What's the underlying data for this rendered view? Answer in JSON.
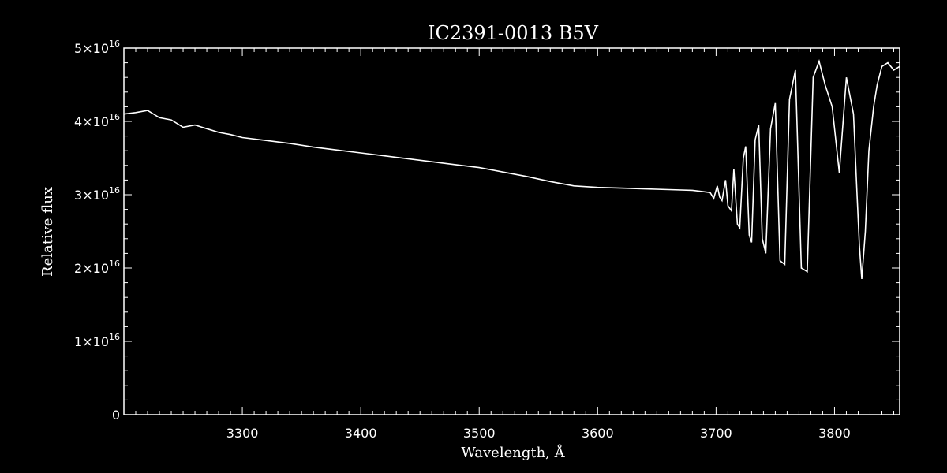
{
  "chart_data": {
    "type": "line",
    "title": "IC2391-0013   B5V",
    "xlabel": "Wavelength, Å",
    "ylabel": "Relative flux",
    "xlim": [
      3200,
      3855
    ],
    "ylim": [
      0,
      5e+16
    ],
    "x_ticks": [
      3300,
      3400,
      3500,
      3600,
      3700,
      3800
    ],
    "x_tick_labels": [
      "3300",
      "3400",
      "3500",
      "3600",
      "3700",
      "3800"
    ],
    "y_ticks": [
      0,
      1e+16,
      2e+16,
      3e+16,
      4e+16,
      5e+16
    ],
    "y_tick_labels": [
      {
        "mantissa": "0",
        "exp": ""
      },
      {
        "mantissa": "1×10",
        "exp": "16"
      },
      {
        "mantissa": "2×10",
        "exp": "16"
      },
      {
        "mantissa": "3×10",
        "exp": "16"
      },
      {
        "mantissa": "4×10",
        "exp": "16"
      },
      {
        "mantissa": "5×10",
        "exp": "16"
      }
    ],
    "grid": false,
    "colors": {
      "background": "#000000",
      "line": "#ffffff",
      "axes": "#ffffff"
    },
    "series": [
      {
        "x": [
          3200,
          3210,
          3220,
          3230,
          3240,
          3250,
          3260,
          3270,
          3280,
          3290,
          3300,
          3320,
          3340,
          3360,
          3380,
          3400,
          3420,
          3440,
          3460,
          3480,
          3500,
          3520,
          3540,
          3560,
          3580,
          3600,
          3620,
          3640,
          3660,
          3680,
          3695,
          3698,
          3701,
          3703,
          3705,
          3708,
          3710,
          3713,
          3715,
          3718,
          3720,
          3723,
          3725,
          3728,
          3730,
          3733,
          3736,
          3739,
          3742,
          3746,
          3750,
          3754,
          3758,
          3762,
          3767,
          3772,
          3777,
          3782,
          3787,
          3792,
          3798,
          3804,
          3810,
          3816,
          3819,
          3821,
          3823,
          3826,
          3829,
          3833,
          3836,
          3840,
          3845,
          3850,
          3855
        ],
        "y": [
          4.1e+16,
          4.12e+16,
          4.15e+16,
          4.05e+16,
          4.02e+16,
          3.92e+16,
          3.95e+16,
          3.9e+16,
          3.85e+16,
          3.82e+16,
          3.78e+16,
          3.74e+16,
          3.7e+16,
          3.65e+16,
          3.61e+16,
          3.57e+16,
          3.53e+16,
          3.49e+16,
          3.45e+16,
          3.41e+16,
          3.37e+16,
          3.31e+16,
          3.25e+16,
          3.18e+16,
          3.12e+16,
          3.1e+16,
          3.09e+16,
          3.08e+16,
          3.07e+16,
          3.06e+16,
          3.03e+16,
          2.95e+16,
          3.12e+16,
          2.97e+16,
          2.92e+16,
          3.2e+16,
          2.85e+16,
          2.78e+16,
          3.35e+16,
          2.6e+16,
          2.55e+16,
          3.5e+16,
          3.66e+16,
          2.45e+16,
          2.35e+16,
          3.75e+16,
          3.95e+16,
          2.4e+16,
          2.2e+16,
          3.9e+16,
          4.25e+16,
          2.1e+16,
          2.05e+16,
          4.3e+16,
          4.7e+16,
          2e+16,
          1.95e+16,
          4.6e+16,
          4.82e+16,
          4.5e+16,
          4.2e+16,
          3.3e+16,
          4.6e+16,
          4.1e+16,
          3e+16,
          2.3e+16,
          1.85e+16,
          2.5e+16,
          3.6e+16,
          4.2e+16,
          4.5e+16,
          4.75e+16,
          4.8e+16,
          4.7e+16,
          4.75e+16
        ]
      }
    ]
  }
}
